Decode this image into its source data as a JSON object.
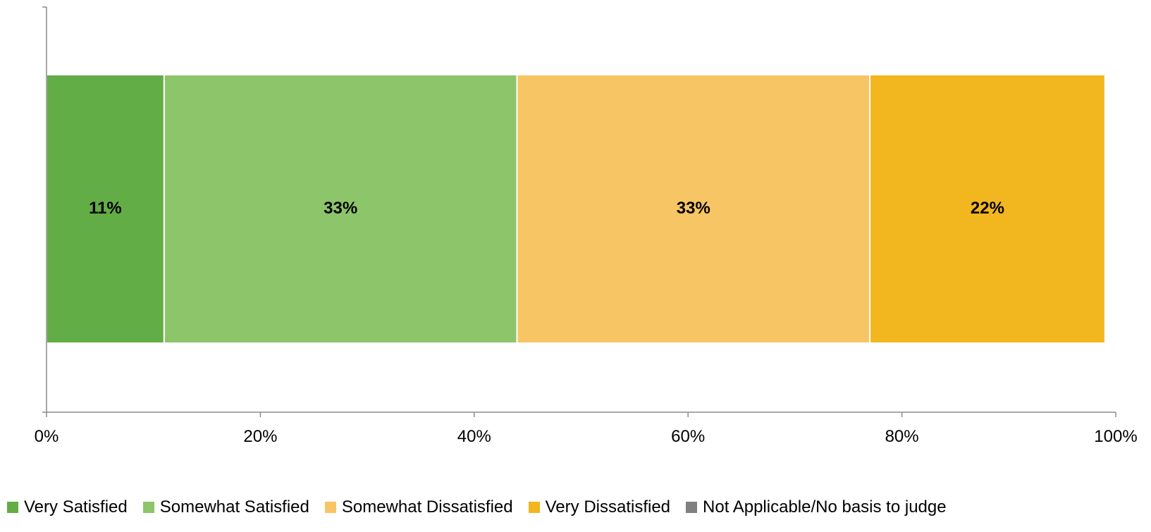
{
  "chart_data": {
    "type": "bar",
    "orientation": "horizontal",
    "stacked": true,
    "categories": [
      ""
    ],
    "series": [
      {
        "name": "Very Satisfied",
        "values": [
          11
        ],
        "label": "11%",
        "color": "#62AD45"
      },
      {
        "name": "Somewhat Satisfied",
        "values": [
          33
        ],
        "label": "33%",
        "color": "#8DC56A"
      },
      {
        "name": "Somewhat Dissatisfied",
        "values": [
          33
        ],
        "label": "33%",
        "color": "#F7C563"
      },
      {
        "name": "Very Dissatisfied",
        "values": [
          22
        ],
        "label": "22%",
        "color": "#F2B61F"
      },
      {
        "name": "Not Applicable/No basis to judge",
        "values": [
          0
        ],
        "label": "",
        "color": "#808080"
      }
    ],
    "xlim": [
      0,
      100
    ],
    "xticks": [
      0,
      20,
      40,
      60,
      80,
      100
    ],
    "xtick_labels": [
      "0%",
      "20%",
      "40%",
      "60%",
      "80%",
      "100%"
    ],
    "title": "",
    "xlabel": "",
    "ylabel": "",
    "grid": false,
    "legend_position": "bottom"
  }
}
